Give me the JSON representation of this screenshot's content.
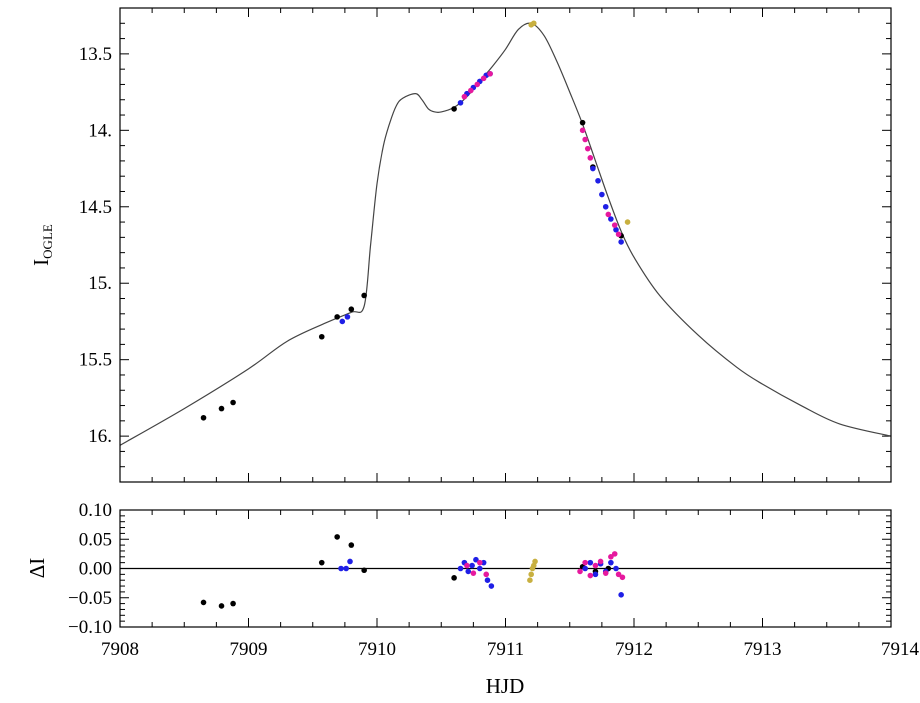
{
  "chart_data": [
    {
      "type": "scatter",
      "panel": "light curve",
      "ylabel": "I",
      "ylabel_sub": "OGLE",
      "xlabel": "",
      "xlim": [
        7908,
        7914
      ],
      "ylim": [
        16.3,
        13.2
      ],
      "y_inverted": true,
      "y_ticks": [
        "13.5",
        "14.",
        "14.5",
        "15.",
        "15.5",
        "16."
      ],
      "y_tick_values": [
        13.5,
        14.0,
        14.5,
        15.0,
        15.5,
        16.0
      ],
      "colors": {
        "model": "#444444",
        "black": "#000000",
        "blue": "#1f1fe6",
        "magenta": "#e6199e",
        "gold": "#c8b040"
      },
      "model": {
        "x": [
          7908.0,
          7908.5,
          7909.0,
          7909.3,
          7909.6,
          7909.8,
          7909.9,
          7909.95,
          7910.0,
          7910.05,
          7910.1,
          7910.15,
          7910.2,
          7910.3,
          7910.35,
          7910.4,
          7910.45,
          7910.5,
          7910.6,
          7910.7,
          7910.8,
          7910.9,
          7911.0,
          7911.1,
          7911.2,
          7911.3,
          7911.4,
          7911.5,
          7911.6,
          7911.7,
          7911.8,
          7911.9,
          7912.0,
          7912.2,
          7912.5,
          7912.8,
          7913.0,
          7913.3,
          7913.6,
          7914.0
        ],
        "y": [
          16.06,
          15.82,
          15.56,
          15.38,
          15.26,
          15.19,
          15.15,
          14.75,
          14.35,
          14.1,
          13.95,
          13.84,
          13.79,
          13.76,
          13.8,
          13.86,
          13.88,
          13.88,
          13.85,
          13.78,
          13.68,
          13.58,
          13.47,
          13.34,
          13.3,
          13.38,
          13.55,
          13.75,
          13.96,
          14.2,
          14.44,
          14.66,
          14.83,
          15.08,
          15.34,
          15.55,
          15.66,
          15.8,
          15.92,
          16.0
        ]
      },
      "series": [
        {
          "color": "black",
          "x": [
            7908.65,
            7908.79,
            7908.88,
            7909.57,
            7909.69,
            7909.8,
            7909.9,
            7910.6,
            7911.6,
            7911.68,
            7911.9
          ],
          "y": [
            15.88,
            15.82,
            15.78,
            15.35,
            15.22,
            15.17,
            15.08,
            13.86,
            13.95,
            14.24,
            14.69
          ]
        },
        {
          "color": "blue",
          "x": [
            7909.73,
            7909.77,
            7910.65,
            7910.7,
            7910.75,
            7910.8,
            7910.85,
            7910.88,
            7911.68,
            7911.72,
            7911.75,
            7911.78,
            7911.82,
            7911.86,
            7911.9
          ],
          "y": [
            15.25,
            15.22,
            13.82,
            13.76,
            13.72,
            13.68,
            13.64,
            13.63,
            14.25,
            14.33,
            14.42,
            14.5,
            14.58,
            14.65,
            14.73
          ]
        },
        {
          "color": "magenta",
          "x": [
            7910.68,
            7910.73,
            7910.78,
            7910.83,
            7910.88,
            7911.6,
            7911.62,
            7911.64,
            7911.66,
            7911.8,
            7911.85,
            7911.88
          ],
          "y": [
            13.78,
            13.74,
            13.7,
            13.66,
            13.63,
            14.0,
            14.06,
            14.12,
            14.18,
            14.55,
            14.62,
            14.68
          ]
        },
        {
          "color": "gold",
          "x": [
            7911.2,
            7911.22,
            7911.95
          ],
          "y": [
            13.31,
            13.3,
            14.6
          ]
        }
      ]
    },
    {
      "type": "scatter",
      "panel": "residuals",
      "ylabel": "ΔI",
      "xlabel": "HJD",
      "xlim": [
        7908,
        7914
      ],
      "ylim": [
        -0.1,
        0.1
      ],
      "x_ticks": [
        "7908",
        "7909",
        "7910",
        "7911",
        "7912",
        "7913",
        "7914"
      ],
      "x_tick_values": [
        7908,
        7909,
        7910,
        7911,
        7912,
        7913,
        7914
      ],
      "y_ticks": [
        "0.10",
        "0.05",
        "0.00",
        "−0.05",
        "−0.10"
      ],
      "y_tick_values": [
        0.1,
        0.05,
        0.0,
        -0.05,
        -0.1
      ],
      "series": [
        {
          "color": "black",
          "x": [
            7908.65,
            7908.79,
            7908.88,
            7909.57,
            7909.69,
            7909.8,
            7909.9,
            7910.6,
            7911.6,
            7911.7,
            7911.8
          ],
          "y": [
            -0.058,
            -0.064,
            -0.06,
            0.01,
            0.054,
            0.04,
            -0.003,
            -0.016,
            0.003,
            -0.005,
            0.0
          ]
        },
        {
          "color": "blue",
          "x": [
            7909.72,
            7909.76,
            7909.79,
            7910.65,
            7910.68,
            7910.71,
            7910.74,
            7910.77,
            7910.8,
            7910.83,
            7910.86,
            7910.89,
            7911.62,
            7911.66,
            7911.7,
            7911.74,
            7911.78,
            7911.82,
            7911.86,
            7911.9
          ],
          "y": [
            0.0,
            0.0,
            0.012,
            0.0,
            0.01,
            -0.005,
            0.005,
            0.015,
            0.0,
            0.01,
            -0.02,
            -0.03,
            0.0,
            0.01,
            -0.01,
            0.008,
            -0.005,
            0.01,
            0.0,
            -0.045
          ]
        },
        {
          "color": "magenta",
          "x": [
            7910.7,
            7910.75,
            7910.8,
            7910.85,
            7911.58,
            7911.62,
            7911.66,
            7911.7,
            7911.74,
            7911.78,
            7911.82,
            7911.85,
            7911.88,
            7911.91
          ],
          "y": [
            0.005,
            -0.008,
            0.01,
            -0.01,
            -0.005,
            0.01,
            -0.012,
            0.005,
            0.012,
            -0.008,
            0.02,
            0.025,
            -0.01,
            -0.015
          ]
        },
        {
          "color": "gold",
          "x": [
            7911.19,
            7911.2,
            7911.21,
            7911.22,
            7911.23
          ],
          "y": [
            -0.02,
            -0.01,
            0.0,
            0.005,
            0.012
          ]
        }
      ]
    }
  ]
}
